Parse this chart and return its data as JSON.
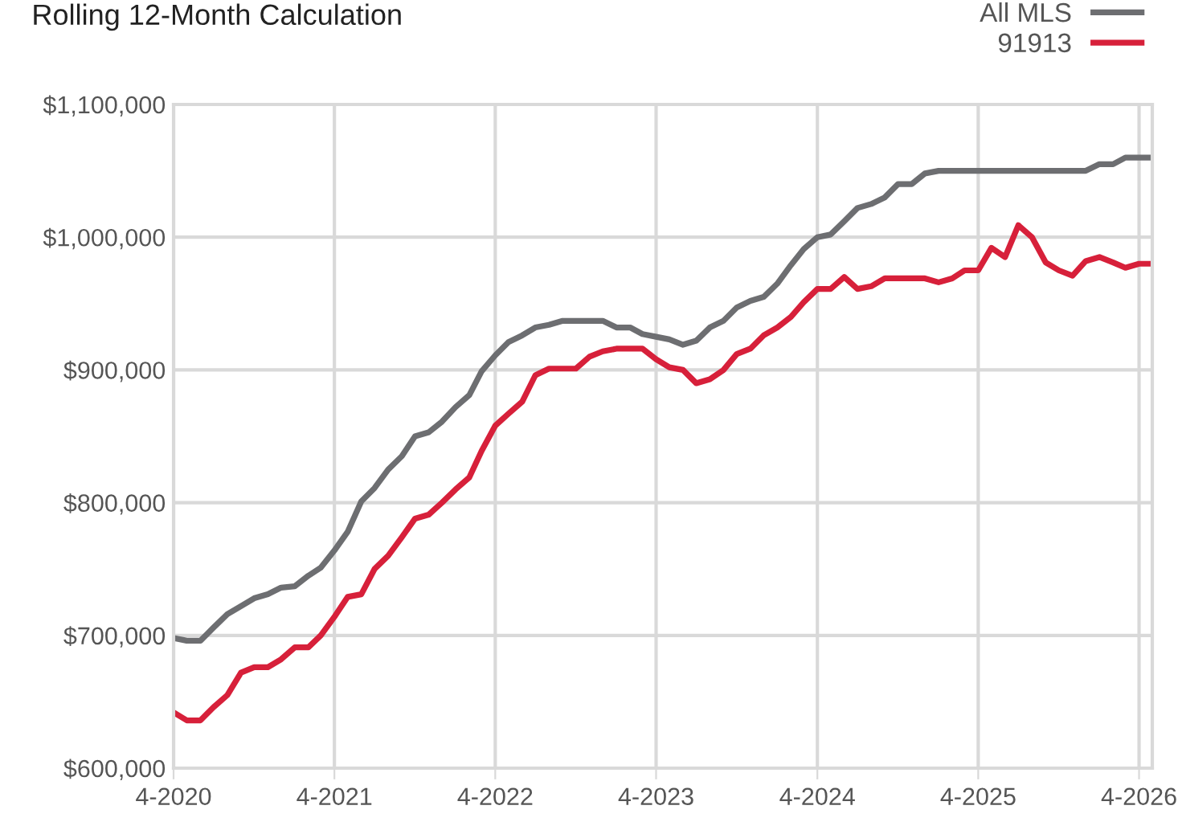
{
  "chart_data": {
    "type": "line",
    "title": "Rolling 12-Month Calculation",
    "x": [
      "2020-04",
      "2020-05",
      "2020-06",
      "2020-07",
      "2020-08",
      "2020-09",
      "2020-10",
      "2020-11",
      "2020-12",
      "2021-01",
      "2021-02",
      "2021-03",
      "2021-04",
      "2021-05",
      "2021-06",
      "2021-07",
      "2021-08",
      "2021-09",
      "2021-10",
      "2021-11",
      "2021-12",
      "2022-01",
      "2022-02",
      "2022-03",
      "2022-04",
      "2022-05",
      "2022-06",
      "2022-07",
      "2022-08",
      "2022-09",
      "2022-10",
      "2022-11",
      "2022-12",
      "2023-01",
      "2023-02",
      "2023-03",
      "2023-04",
      "2023-05",
      "2023-06",
      "2023-07",
      "2023-08",
      "2023-09",
      "2023-10",
      "2023-11",
      "2023-12",
      "2024-01",
      "2024-02",
      "2024-03",
      "2024-04",
      "2024-05",
      "2024-06",
      "2024-07",
      "2024-08",
      "2024-09",
      "2024-10",
      "2024-11",
      "2024-12",
      "2025-01",
      "2025-02",
      "2025-03",
      "2025-04",
      "2025-05",
      "2025-06",
      "2025-07",
      "2025-08",
      "2025-09",
      "2025-10",
      "2025-11",
      "2025-12",
      "2026-01",
      "2026-02",
      "2026-03",
      "2026-04",
      "2026-05"
    ],
    "series": [
      {
        "name": "All MLS",
        "color": "#6d6e71",
        "values": [
          698000,
          696000,
          696000,
          706000,
          716000,
          722000,
          728000,
          731000,
          736000,
          737000,
          745000,
          751000,
          764000,
          778000,
          801000,
          811000,
          825000,
          835000,
          850000,
          853000,
          861000,
          872000,
          881000,
          899000,
          911000,
          921000,
          926000,
          932000,
          934000,
          937000,
          937000,
          937000,
          937000,
          932000,
          932000,
          927000,
          925000,
          923000,
          919000,
          922000,
          932000,
          937000,
          947000,
          952000,
          955000,
          965000,
          979000,
          991000,
          1000000,
          1002000,
          1012000,
          1022000,
          1025000,
          1030000,
          1040000,
          1040000,
          1048000,
          1050000,
          1050000,
          1050000,
          1050000,
          1050000,
          1050000,
          1050000,
          1050000,
          1050000,
          1050000,
          1050000,
          1050000,
          1055000,
          1055000,
          1060000,
          1060000,
          1060000
        ]
      },
      {
        "name": "91913",
        "color": "#d7203a",
        "values": [
          642000,
          636000,
          636000,
          646000,
          655000,
          672000,
          676000,
          676000,
          682000,
          691000,
          691000,
          700000,
          714000,
          729000,
          731000,
          750000,
          760000,
          774000,
          788000,
          791000,
          800000,
          810000,
          819000,
          839000,
          858000,
          867000,
          876000,
          896000,
          901000,
          901000,
          901000,
          910000,
          914000,
          916000,
          916000,
          916000,
          908000,
          902000,
          900000,
          890000,
          893000,
          900000,
          912000,
          916000,
          926000,
          932000,
          940000,
          951000,
          961000,
          961000,
          970000,
          961000,
          963000,
          969000,
          969000,
          969000,
          969000,
          966000,
          969000,
          975000,
          975000,
          992000,
          985000,
          1009000,
          1000000,
          981000,
          975000,
          971000,
          982000,
          985000,
          981000,
          977000,
          980000,
          980000
        ]
      }
    ],
    "xlim": [
      "2020-04",
      "2026-05"
    ],
    "xticks": [
      {
        "value": "2020-04",
        "label": "4-2020"
      },
      {
        "value": "2021-04",
        "label": "4-2021"
      },
      {
        "value": "2022-04",
        "label": "4-2022"
      },
      {
        "value": "2023-04",
        "label": "4-2023"
      },
      {
        "value": "2024-04",
        "label": "4-2024"
      },
      {
        "value": "2025-04",
        "label": "4-2025"
      },
      {
        "value": "2026-04",
        "label": "4-2026"
      }
    ],
    "ylim": [
      600000,
      1100000
    ],
    "yticks": [
      {
        "value": 600000,
        "label": "$600,000"
      },
      {
        "value": 700000,
        "label": "$700,000"
      },
      {
        "value": 800000,
        "label": "$800,000"
      },
      {
        "value": 900000,
        "label": "$900,000"
      },
      {
        "value": 1000000,
        "label": "$1,000,000"
      },
      {
        "value": 1100000,
        "label": "$1,100,000"
      }
    ],
    "grid": true,
    "legend": "top right",
    "marker": "none",
    "line_style": "solid"
  }
}
